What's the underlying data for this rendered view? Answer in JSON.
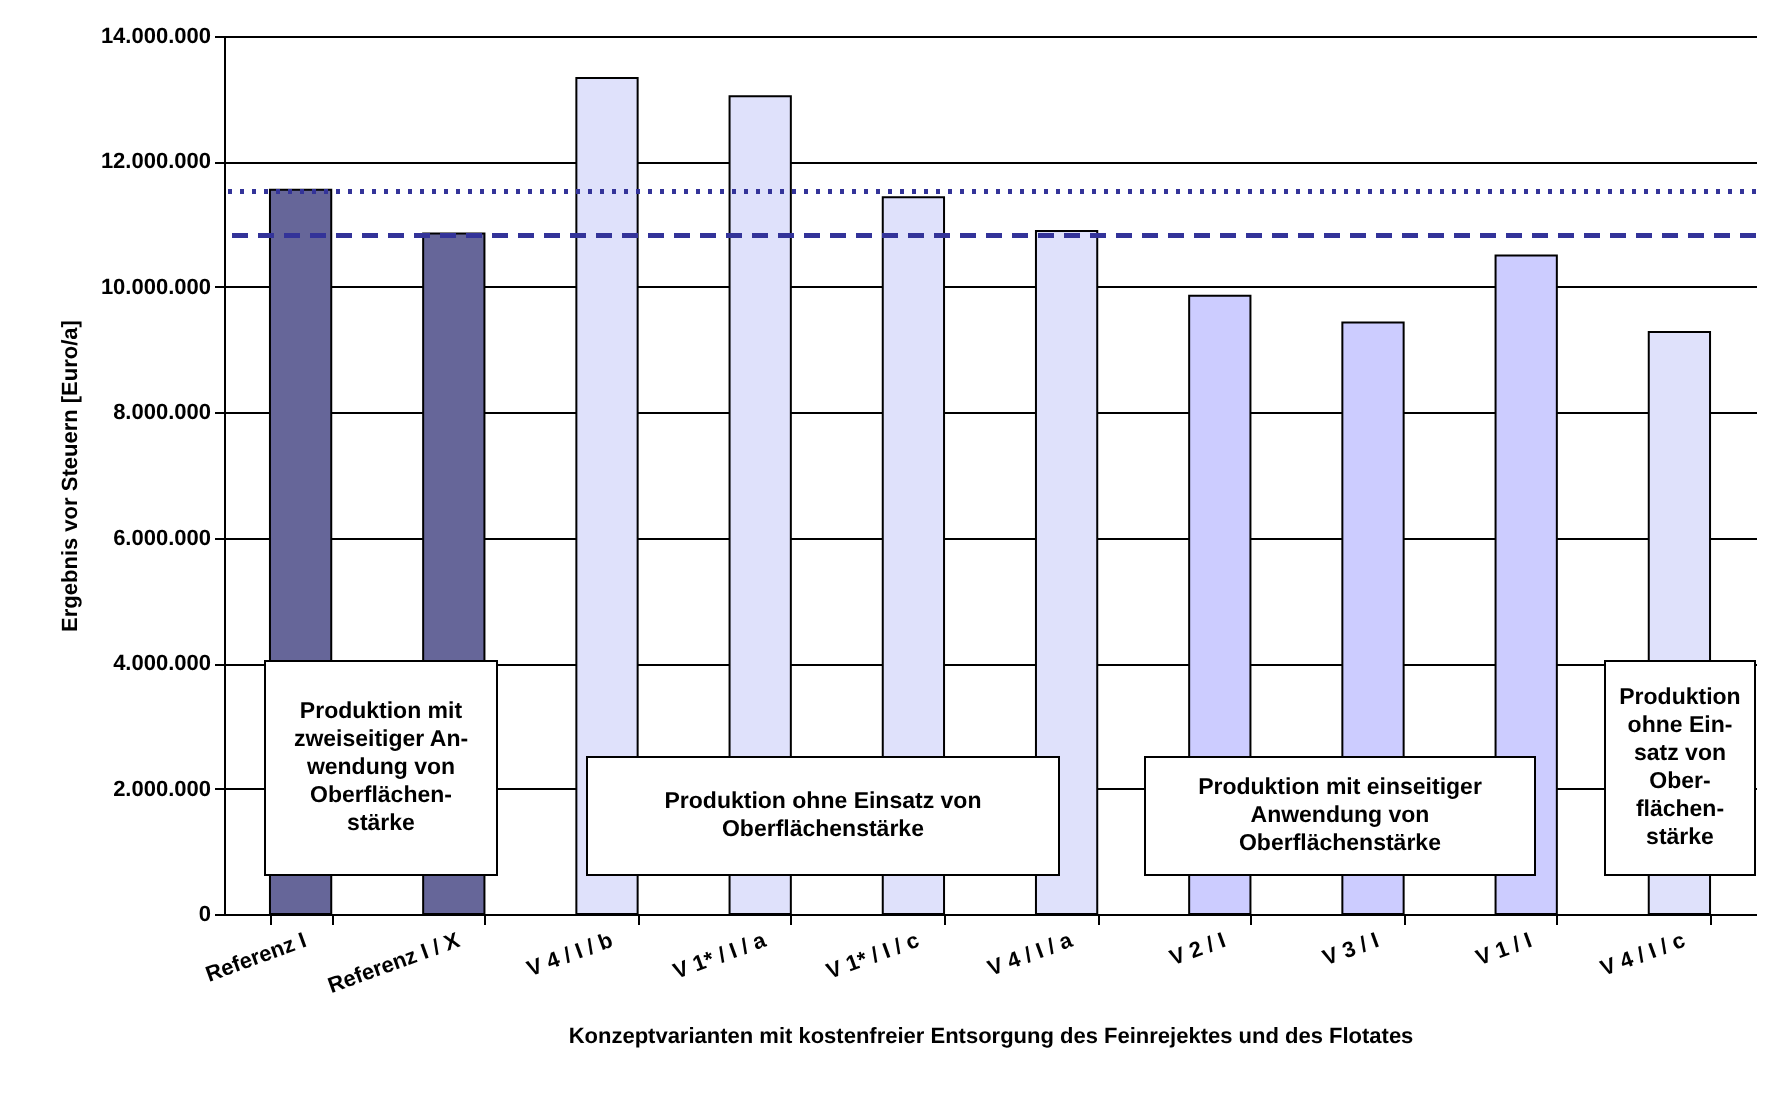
{
  "chart_data": {
    "type": "bar",
    "xlabel": "Konzeptvarianten mit kostenfreier Entsorgung des Feinrejektes und des Flotates",
    "ylabel": "Ergebnis vor Steuern [Euro/a]",
    "categories": [
      "Referenz I",
      "Referenz I / X",
      "V 4 / I / b",
      "V 1* / I / a",
      "V 1* / I / c",
      "V 4 / I / a",
      "V 2 / I",
      "V 3 / I",
      "V 1 / I",
      "V 4 / I / c"
    ],
    "values": [
      11550000,
      10850000,
      13330000,
      13040000,
      11430000,
      10890000,
      9860000,
      9430000,
      10500000,
      9280000
    ],
    "colors": [
      "#666699",
      "#666699",
      "#dfe1fb",
      "#dfe1fb",
      "#dfe1fb",
      "#dfe1fb",
      "#ccccff",
      "#ccccff",
      "#ccccff",
      "#dfe1fb"
    ],
    "ylim": [
      0,
      14000000
    ],
    "yticks": [
      {
        "value": 0,
        "label": "0"
      },
      {
        "value": 2000000,
        "label": "2.000.000"
      },
      {
        "value": 4000000,
        "label": "4.000.000"
      },
      {
        "value": 6000000,
        "label": "6.000.000"
      },
      {
        "value": 8000000,
        "label": "8.000.000"
      },
      {
        "value": 10000000,
        "label": "10.000.000"
      },
      {
        "value": 12000000,
        "label": "12.000.000"
      },
      {
        "value": 14000000,
        "label": "14.000.000"
      }
    ],
    "grid": "y",
    "ref_lines": [
      {
        "axis": "y",
        "value": 11520000,
        "color": "#333399",
        "line_style": "dotted"
      },
      {
        "axis": "y",
        "value": 10820000,
        "color": "#333399",
        "line_style": "dashed"
      }
    ],
    "annotations": [
      "Produktion mit\nzweiseitiger An-\nwendung von\nOberflächen-\nstärke",
      "Produktion ohne Einsatz von\nOberflächenstärke",
      "Produktion mit einseitiger\nAnwendung von\nOberflächenstärke",
      "Produktion\nohne Ein-\nsatz von\nOber-\nflächen-\nstärke"
    ]
  }
}
